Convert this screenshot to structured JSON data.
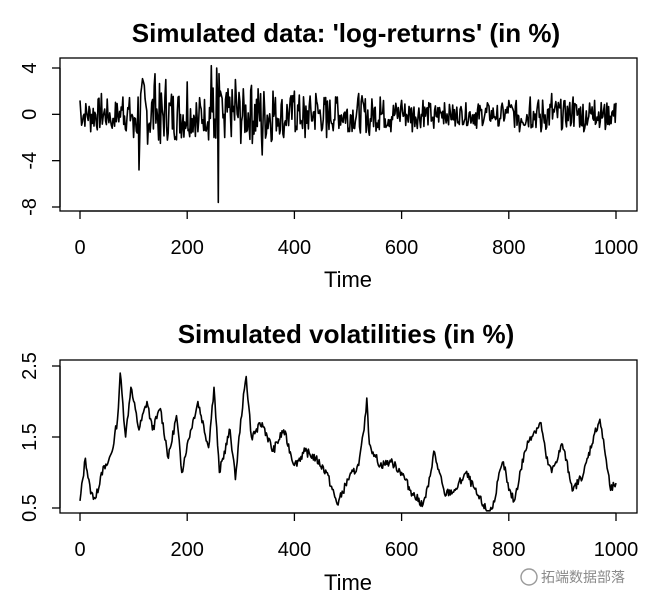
{
  "chart_data": [
    {
      "type": "line",
      "title": "Simulated data: 'log-returns' (in %)",
      "xlabel": "Time",
      "ylabel": "",
      "xlim": [
        0,
        1000
      ],
      "ylim": [
        -8,
        4
      ],
      "xticks": [
        0,
        200,
        400,
        600,
        800,
        1000
      ],
      "yticks": [
        -8,
        -4,
        0,
        4
      ],
      "series": [
        {
          "name": "log-returns",
          "x": [
            0,
            20,
            40,
            60,
            80,
            100,
            110,
            120,
            140,
            150,
            160,
            180,
            200,
            220,
            240,
            245,
            250,
            255,
            258,
            262,
            270,
            290,
            300,
            320,
            340,
            360,
            380,
            400,
            420,
            440,
            460,
            480,
            500,
            520,
            540,
            560,
            580,
            600,
            620,
            640,
            660,
            680,
            700,
            720,
            740,
            760,
            780,
            800,
            820,
            840,
            860,
            880,
            900,
            920,
            940,
            960,
            980,
            1000
          ],
          "y": [
            1.2,
            -1.5,
            1.8,
            -1.2,
            1.5,
            -2.0,
            -4.8,
            2.5,
            3.5,
            -2.5,
            3.0,
            -2.2,
            2.8,
            -1.5,
            -2.2,
            4.2,
            -2.0,
            4.0,
            -7.6,
            2.0,
            -2.0,
            3.0,
            -2.5,
            2.5,
            -3.5,
            2.0,
            -2.0,
            2.0,
            -2.0,
            1.8,
            -2.0,
            1.5,
            -1.5,
            1.8,
            -1.8,
            1.5,
            -1.5,
            1.2,
            -1.5,
            1.2,
            -1.2,
            1.0,
            -1.0,
            1.0,
            -1.2,
            1.0,
            -1.0,
            1.2,
            -1.5,
            1.5,
            -1.5,
            1.8,
            -1.2,
            1.5,
            -1.5,
            1.2,
            -1.3,
            1.0
          ]
        }
      ]
    },
    {
      "type": "line",
      "title": "Simulated volatilities (in %)",
      "xlabel": "Time",
      "ylabel": "",
      "xlim": [
        0,
        1000
      ],
      "ylim": [
        0.5,
        2.5
      ],
      "xticks": [
        0,
        200,
        400,
        600,
        800,
        1000
      ],
      "yticks": [
        0.5,
        1.5,
        2.5
      ],
      "series": [
        {
          "name": "volatility",
          "x": [
            0,
            10,
            20,
            30,
            40,
            50,
            60,
            70,
            75,
            85,
            95,
            110,
            125,
            135,
            150,
            165,
            180,
            190,
            200,
            220,
            240,
            250,
            260,
            280,
            290,
            300,
            310,
            320,
            340,
            360,
            380,
            400,
            420,
            440,
            460,
            480,
            500,
            520,
            530,
            535,
            540,
            550,
            560,
            580,
            600,
            620,
            640,
            650,
            660,
            680,
            700,
            720,
            740,
            760,
            770,
            780,
            790,
            800,
            810,
            830,
            840,
            860,
            870,
            880,
            900,
            920,
            940,
            960,
            970,
            980,
            990,
            1000
          ],
          "y": [
            0.6,
            1.2,
            0.7,
            0.65,
            1.0,
            1.1,
            1.3,
            1.75,
            2.4,
            1.5,
            2.2,
            1.6,
            2.0,
            1.6,
            1.9,
            1.2,
            1.8,
            1.0,
            1.4,
            2.0,
            1.35,
            2.2,
            1.0,
            1.6,
            0.9,
            1.75,
            2.35,
            1.5,
            1.7,
            1.3,
            1.6,
            1.1,
            1.3,
            1.2,
            1.0,
            0.55,
            0.9,
            1.1,
            1.6,
            2.05,
            1.4,
            1.25,
            1.1,
            1.15,
            1.0,
            0.7,
            0.55,
            0.8,
            1.3,
            0.7,
            0.75,
            1.0,
            0.7,
            0.45,
            0.5,
            0.9,
            1.15,
            0.75,
            0.6,
            1.3,
            1.5,
            1.7,
            1.2,
            1.0,
            1.4,
            0.75,
            1.0,
            1.55,
            1.75,
            1.25,
            0.75,
            0.85
          ]
        }
      ]
    }
  ],
  "watermark": "拓端数据部落"
}
